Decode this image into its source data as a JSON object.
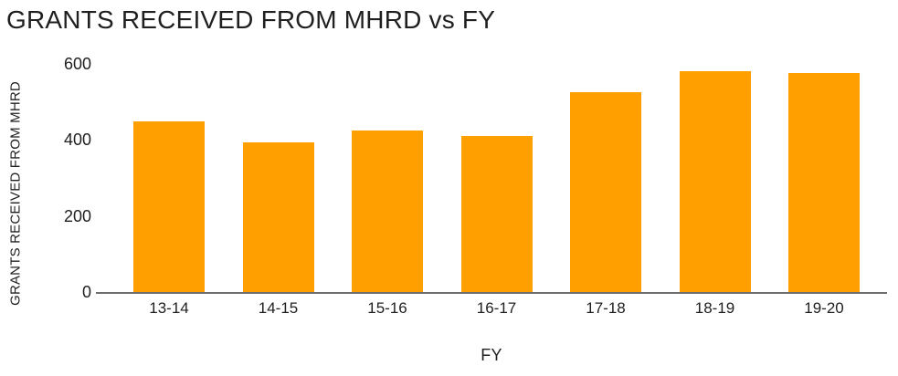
{
  "page": {
    "title": "GRANTS RECEIVED FROM MHRD vs FY"
  },
  "chart_data": {
    "type": "bar",
    "title": "GRANTS RECEIVED FROM MHRD vs FY",
    "categories": [
      "13-14",
      "14-15",
      "15-16",
      "16-17",
      "17-18",
      "18-19",
      "19-20"
    ],
    "values": [
      450,
      393,
      426,
      410,
      525,
      581,
      577
    ],
    "xlabel": "FY",
    "ylabel": "GRANTS RECEIVED FROM MHRD",
    "ylim": [
      0,
      600
    ],
    "yticks": [
      0,
      200,
      400,
      600
    ],
    "grid": false,
    "legend": "none",
    "colors": {
      "bar": "#FFA000",
      "axis": "#6E6E6E",
      "text": "#1F1F1F",
      "background": "#FFFFFF"
    }
  }
}
